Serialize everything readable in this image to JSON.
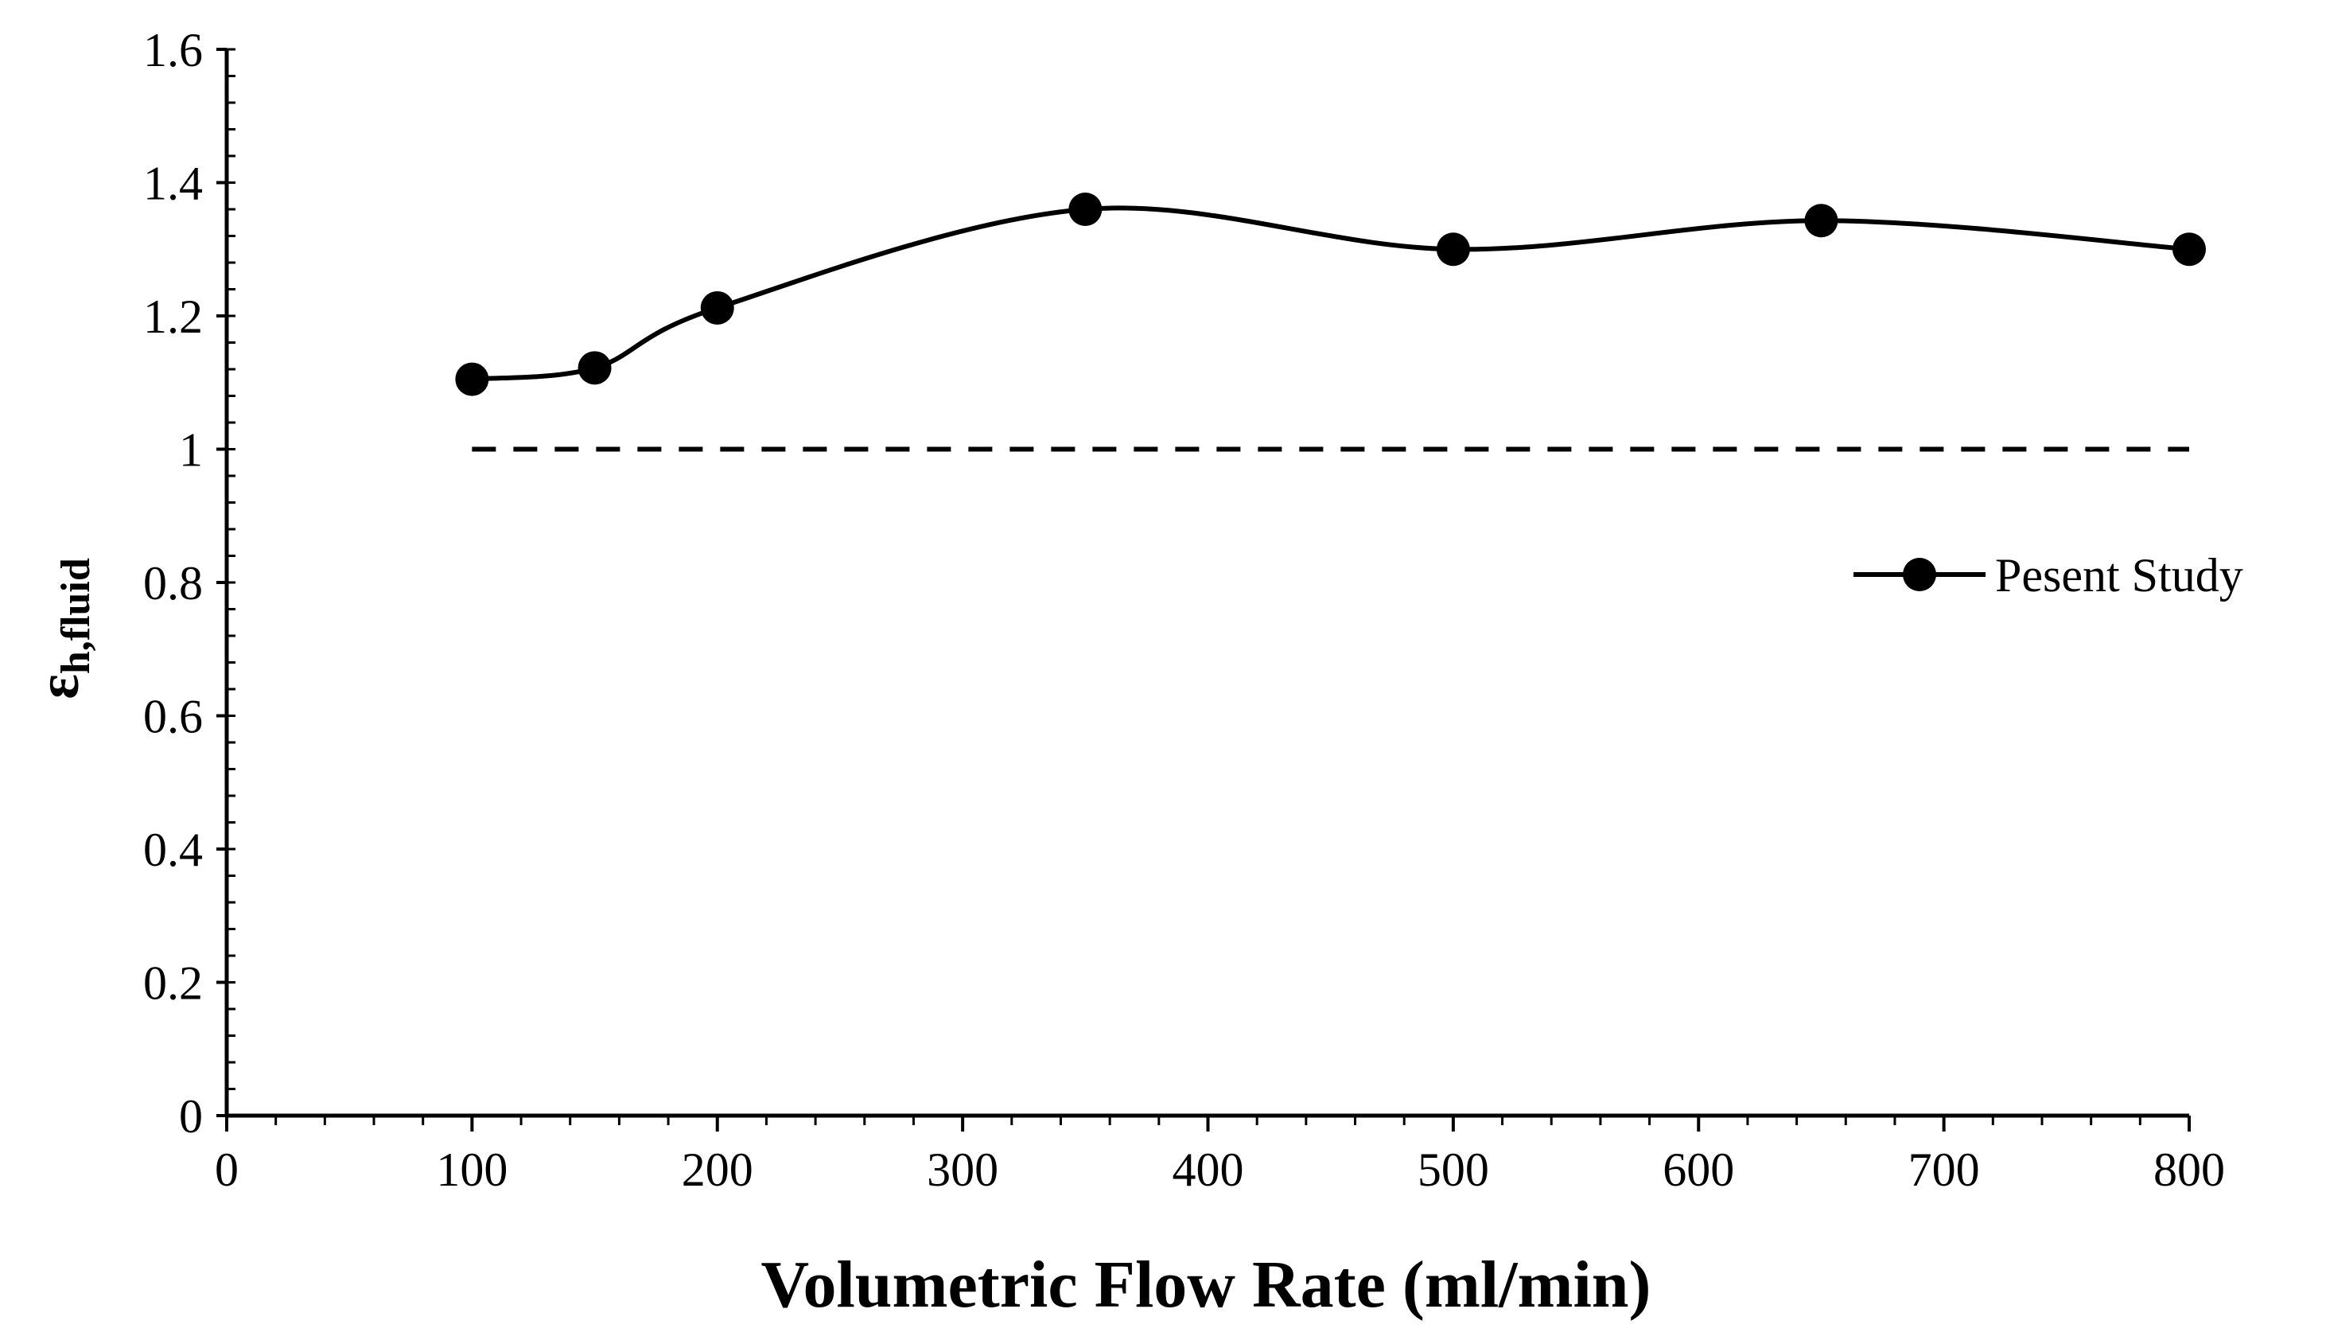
{
  "chart_data": {
    "type": "line",
    "title": "",
    "xlabel": "Volumetric Flow Rate (ml/min)",
    "ylabel": {
      "symbol": "ε",
      "subscript": "h,fluid"
    },
    "xlim": [
      0,
      800
    ],
    "ylim": [
      0,
      1.6
    ],
    "x_ticks": [
      0,
      100,
      200,
      300,
      400,
      500,
      600,
      700,
      800
    ],
    "x_tick_labels": [
      "0",
      "100",
      "200",
      "300",
      "400",
      "500",
      "600",
      "700",
      "800"
    ],
    "y_ticks": [
      0,
      0.2,
      0.4,
      0.6,
      0.8,
      1.0,
      1.2,
      1.4,
      1.6
    ],
    "y_tick_labels": [
      "0",
      "0.2",
      "0.4",
      "0.6",
      "0.8",
      "1",
      "1.2",
      "1.4",
      "1.6"
    ],
    "x_minor_step": 20,
    "y_minor_step": 0.04,
    "grid": false,
    "legend_position": "right",
    "series": [
      {
        "name": "Pesent Study",
        "x": [
          100,
          150,
          200,
          350,
          500,
          650,
          800
        ],
        "values": [
          1.105,
          1.122,
          1.212,
          1.36,
          1.3,
          1.343,
          1.3
        ],
        "color": "#000000",
        "marker": "circle",
        "smooth": true
      }
    ],
    "reference_line": {
      "y": 1.0,
      "x_range": [
        100,
        800
      ],
      "style": "dashed",
      "color": "#000000"
    }
  }
}
